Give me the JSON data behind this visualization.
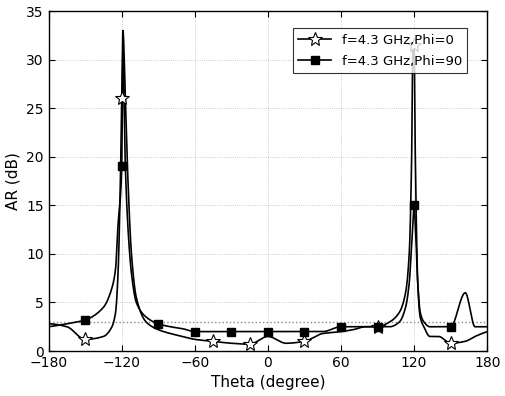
{
  "title": "",
  "xlabel": "Theta (degree)",
  "ylabel": "AR (dB)",
  "xlim": [
    -180,
    180
  ],
  "ylim": [
    0,
    35
  ],
  "xticks": [
    -180,
    -120,
    -60,
    0,
    60,
    120,
    180
  ],
  "yticks": [
    0,
    5,
    10,
    15,
    20,
    25,
    30,
    35
  ],
  "hline_y": 3.0,
  "hline_color": "#888888",
  "hline_style": "dotted",
  "legend1_label": "f=4.3 GHz,Phi=0",
  "legend2_label": "f=4.3 GHz,Phi=90",
  "line_color": "#000000",
  "figsize": [
    5.06,
    3.96
  ],
  "dpi": 100,
  "phi0_theta": [
    -180,
    -165,
    -150,
    -135,
    -128,
    -125,
    -123,
    -121,
    -120,
    -119,
    -117,
    -115,
    -112,
    -108,
    -100,
    -90,
    -80,
    -70,
    -60,
    -45,
    -30,
    -15,
    0,
    15,
    30,
    45,
    60,
    70,
    80,
    90,
    100,
    108,
    113,
    116,
    118,
    119,
    120,
    121,
    123,
    125,
    128,
    133,
    140,
    150,
    162,
    170,
    180
  ],
  "phi0_ar": [
    2.8,
    2.5,
    1.2,
    1.5,
    2.5,
    4.0,
    8.0,
    18.0,
    26.0,
    33.0,
    26.0,
    18.0,
    10.0,
    5.5,
    3.0,
    2.2,
    1.8,
    1.5,
    1.2,
    1.0,
    0.8,
    0.7,
    1.5,
    0.8,
    1.0,
    1.8,
    2.0,
    2.2,
    2.5,
    2.5,
    3.0,
    4.0,
    6.0,
    10.0,
    20.0,
    31.5,
    31.5,
    20.0,
    7.0,
    3.5,
    2.5,
    1.5,
    1.5,
    0.8,
    1.0,
    1.5,
    2.0
  ],
  "phi90_theta": [
    -180,
    -165,
    -150,
    -135,
    -128,
    -125,
    -123,
    -121,
    -120,
    -119,
    -117,
    -115,
    -112,
    -108,
    -100,
    -90,
    -80,
    -70,
    -60,
    -45,
    -30,
    -15,
    0,
    15,
    30,
    45,
    60,
    70,
    80,
    90,
    100,
    108,
    113,
    116,
    118,
    119,
    120,
    121,
    123,
    125,
    128,
    133,
    140,
    150,
    162,
    170,
    180
  ],
  "phi90_ar": [
    2.5,
    2.8,
    3.2,
    4.5,
    6.5,
    8.5,
    13.0,
    16.0,
    19.0,
    30.5,
    19.0,
    13.0,
    8.0,
    5.0,
    3.5,
    2.8,
    2.5,
    2.3,
    2.0,
    2.0,
    2.0,
    2.0,
    2.0,
    2.0,
    2.0,
    2.0,
    2.5,
    2.5,
    2.5,
    2.5,
    2.5,
    3.0,
    4.5,
    7.0,
    11.0,
    13.0,
    15.0,
    13.0,
    7.0,
    4.0,
    3.0,
    2.5,
    2.5,
    2.5,
    6.0,
    2.5,
    2.5
  ],
  "phi0_markers_theta": [
    -150,
    -120,
    -45,
    -15,
    30,
    90,
    120,
    150
  ],
  "phi0_markers_ar": [
    1.2,
    26.0,
    1.0,
    0.7,
    1.0,
    2.5,
    31.5,
    0.8
  ],
  "phi90_markers_theta": [
    -150,
    -120,
    -90,
    -60,
    -30,
    0,
    30,
    60,
    90,
    120,
    150
  ],
  "phi90_markers_ar": [
    3.2,
    19.0,
    2.8,
    2.0,
    2.0,
    2.0,
    2.0,
    2.5,
    2.5,
    15.0,
    2.5
  ]
}
